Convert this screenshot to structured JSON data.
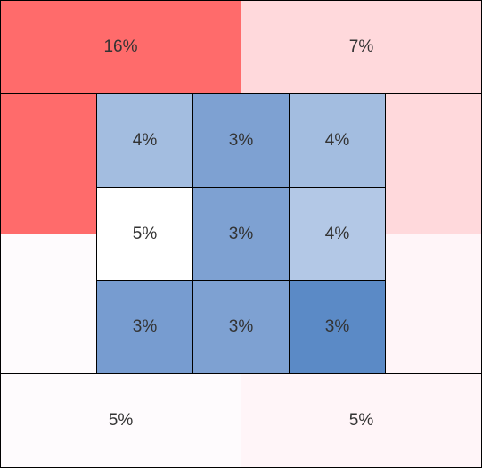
{
  "chart_data": {
    "type": "heatmap",
    "title": "",
    "xlabel": "",
    "ylabel": "",
    "outer_zones": [
      {
        "id": "top-left",
        "value": "16%",
        "color": "#ff6b6b"
      },
      {
        "id": "top-right",
        "value": "7%",
        "color": "#ffd9dc"
      },
      {
        "id": "left-upper",
        "value": "",
        "color": "#ff6b6b"
      },
      {
        "id": "right-upper",
        "value": "",
        "color": "#ffd9dc"
      },
      {
        "id": "left-lower",
        "value": "",
        "color": "#fefbfd"
      },
      {
        "id": "right-lower",
        "value": "",
        "color": "#fff5f8"
      },
      {
        "id": "bottom-left",
        "value": "5%",
        "color": "#fefbfd"
      },
      {
        "id": "bottom-right",
        "value": "5%",
        "color": "#fff5f8"
      }
    ],
    "inner_grid": [
      [
        {
          "value": "4%",
          "color": "#a3bde0"
        },
        {
          "value": "3%",
          "color": "#7ea1d2"
        },
        {
          "value": "4%",
          "color": "#a3bde0"
        }
      ],
      [
        {
          "value": "5%",
          "color": "#ffffff"
        },
        {
          "value": "3%",
          "color": "#7ea1d2"
        },
        {
          "value": "4%",
          "color": "#b3c8e6"
        }
      ],
      [
        {
          "value": "3%",
          "color": "#779cd0"
        },
        {
          "value": "3%",
          "color": "#7ea1d2"
        },
        {
          "value": "3%",
          "color": "#5b8ac6"
        }
      ]
    ]
  }
}
